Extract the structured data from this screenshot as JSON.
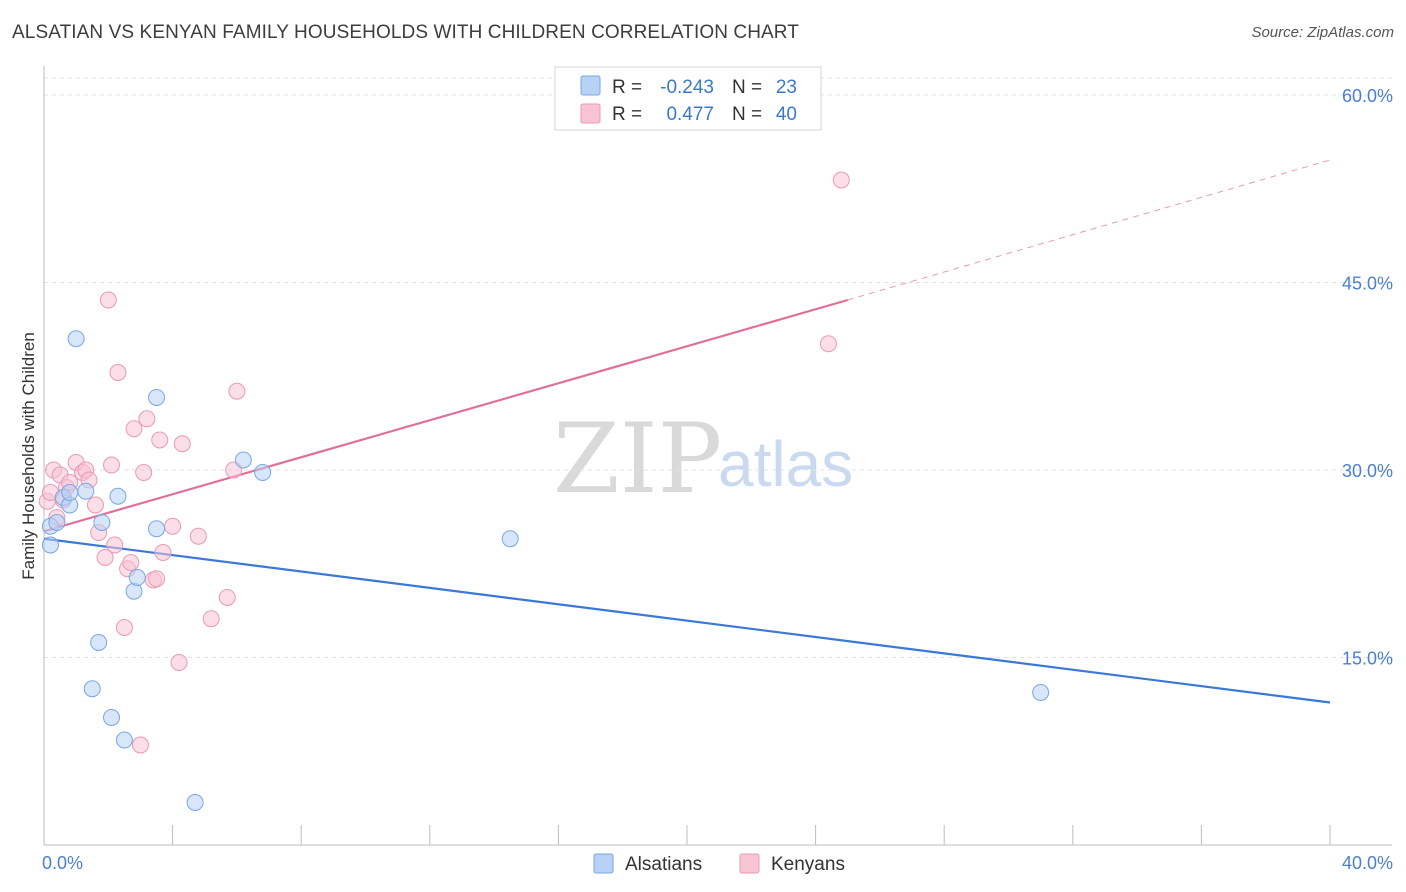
{
  "title": "ALSATIAN VS KENYAN FAMILY HOUSEHOLDS WITH CHILDREN CORRELATION CHART",
  "source": "Source: ZipAtlas.com",
  "watermark": {
    "zip": "ZIP",
    "atlas": "atlas"
  },
  "colors": {
    "alsatian_fill": "#b8d2f5",
    "alsatian_stroke": "#7aa6e6",
    "alsatian_line": "#3b78d8",
    "kenyan_fill": "#f8c3d3",
    "kenyan_stroke": "#ea9ab4",
    "kenyan_line": "#e0709a",
    "grid": "#e2e2e2",
    "tick_text": "#4a7fd0"
  },
  "legend": {
    "rows": [
      {
        "r_label": "R =",
        "r_value": "-0.243",
        "n_label": "N =",
        "n_value": "23"
      },
      {
        "r_label": "R =",
        "r_value": "0.477",
        "n_label": "N =",
        "n_value": "40"
      }
    ]
  },
  "chart_data": {
    "type": "scatter",
    "title": "ALSATIAN VS KENYAN FAMILY HOUSEHOLDS WITH CHILDREN CORRELATION CHART",
    "xlabel": "",
    "ylabel": "Family Households with Children",
    "xlim": [
      0,
      40
    ],
    "ylim": [
      0,
      62
    ],
    "x_tick_labels": [
      "0.0%",
      "40.0%"
    ],
    "y_ticks": [
      15,
      30,
      45,
      60
    ],
    "y_tick_labels": [
      "15.0%",
      "30.0%",
      "45.0%",
      "60.0%"
    ],
    "grid": true,
    "legend_position": "top-center",
    "series": [
      {
        "name": "Alsatians",
        "points": [
          [
            0.2,
            25.5
          ],
          [
            0.2,
            24.0
          ],
          [
            0.4,
            25.8
          ],
          [
            0.6,
            27.8
          ],
          [
            0.8,
            27.2
          ],
          [
            0.8,
            28.2
          ],
          [
            1.0,
            40.5
          ],
          [
            1.3,
            28.3
          ],
          [
            1.5,
            12.5
          ],
          [
            1.7,
            16.2
          ],
          [
            1.8,
            25.8
          ],
          [
            2.1,
            10.2
          ],
          [
            2.3,
            27.9
          ],
          [
            2.5,
            8.4
          ],
          [
            2.8,
            20.3
          ],
          [
            2.9,
            21.4
          ],
          [
            3.5,
            35.8
          ],
          [
            3.5,
            25.3
          ],
          [
            4.7,
            3.4
          ],
          [
            6.2,
            30.8
          ],
          [
            6.8,
            29.8
          ],
          [
            14.5,
            24.5
          ],
          [
            31.0,
            12.2
          ]
        ],
        "trend": {
          "x": [
            0,
            40
          ],
          "y": [
            24.5,
            11.4
          ]
        }
      },
      {
        "name": "Kenyans",
        "points": [
          [
            0.1,
            27.5
          ],
          [
            0.2,
            28.2
          ],
          [
            0.3,
            30.0
          ],
          [
            0.4,
            26.2
          ],
          [
            0.5,
            29.6
          ],
          [
            0.6,
            27.6
          ],
          [
            0.7,
            28.6
          ],
          [
            0.8,
            29.0
          ],
          [
            1.0,
            30.6
          ],
          [
            1.2,
            29.8
          ],
          [
            1.3,
            30.0
          ],
          [
            1.4,
            29.2
          ],
          [
            1.6,
            27.2
          ],
          [
            1.7,
            25.0
          ],
          [
            1.9,
            23.0
          ],
          [
            2.0,
            43.6
          ],
          [
            2.1,
            30.4
          ],
          [
            2.2,
            24.0
          ],
          [
            2.3,
            37.8
          ],
          [
            2.5,
            17.4
          ],
          [
            2.6,
            22.1
          ],
          [
            2.7,
            22.6
          ],
          [
            2.8,
            33.3
          ],
          [
            3.0,
            8.0
          ],
          [
            3.1,
            29.8
          ],
          [
            3.2,
            34.1
          ],
          [
            3.4,
            21.2
          ],
          [
            3.5,
            21.3
          ],
          [
            3.6,
            32.4
          ],
          [
            3.7,
            23.4
          ],
          [
            4.0,
            25.5
          ],
          [
            4.2,
            14.6
          ],
          [
            4.3,
            32.1
          ],
          [
            4.8,
            24.7
          ],
          [
            5.2,
            18.1
          ],
          [
            5.7,
            19.8
          ],
          [
            5.9,
            30.0
          ],
          [
            6.0,
            36.3
          ],
          [
            24.4,
            40.1
          ],
          [
            24.8,
            53.2
          ]
        ],
        "trend": {
          "x": [
            0,
            25
          ],
          "y": [
            25.1,
            43.6
          ]
        },
        "trend_extension": {
          "x": [
            25,
            40
          ],
          "y": [
            43.6,
            54.8
          ]
        }
      }
    ]
  }
}
